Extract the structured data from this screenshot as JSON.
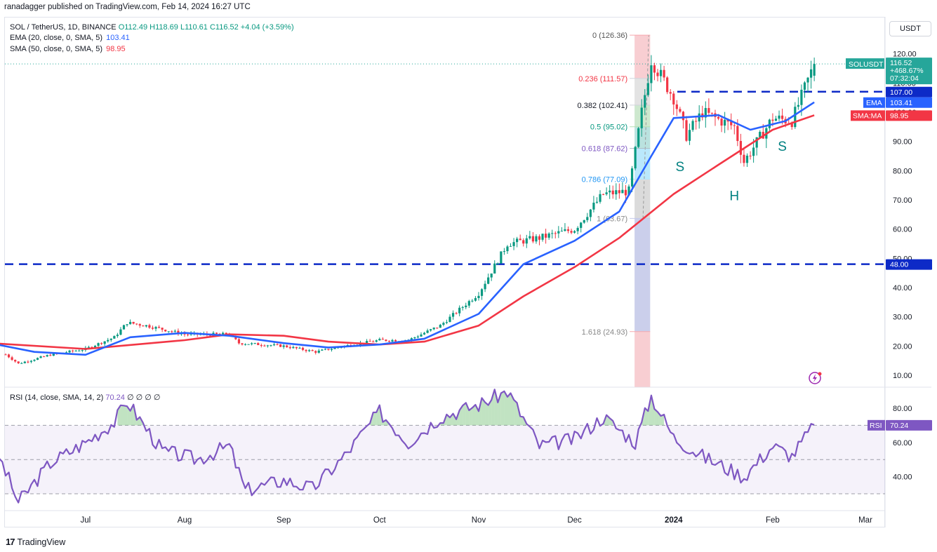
{
  "publisher_line": "ranadagger published on TradingView.com, Feb 14, 2024 16:27 UTC",
  "legend": {
    "symbol": "SOL / TetherUS, 1D, BINANCE",
    "ohlc": "O112.49 H118.69 L110.61 C116.52 +4.04 (+3.59%)",
    "ema_label": "EMA (20, close, 0, SMA, 5)",
    "ema_value": "103.41",
    "sma_label": "SMA (50, close, 0, SMA, 5)",
    "sma_value": "98.95",
    "rsi_label": "RSI (14, close, SMA, 14, 2)",
    "rsi_value": "70.24",
    "rsi_extra": "∅ ∅ ∅ ∅"
  },
  "currency": "USDT",
  "footer": {
    "brand": "TradingView"
  },
  "colors": {
    "ema": "#2962ff",
    "sma": "#f23645",
    "up": "#089981",
    "down": "#f23645",
    "level": "#0d2ac7",
    "rsi": "#7e57c2",
    "pattern": "#008080"
  },
  "chart_data": [
    {
      "type": "candlestick",
      "price_axis_ticks": [
        "120.00",
        "110.00",
        "100.00",
        "90.00",
        "80.00",
        "70.00",
        "60.00",
        "50.00",
        "40.00",
        "30.00",
        "20.00",
        "10.00"
      ],
      "time_axis_ticks": [
        "Jul",
        "Aug",
        "Sep",
        "Oct",
        "Nov",
        "Dec",
        "2024",
        "Feb",
        "Mar"
      ],
      "last_price": {
        "label": "SOLUSDT",
        "value": "116.52",
        "change": "+468.67%",
        "countdown": "07:32:04"
      },
      "horizontal_levels": [
        {
          "value": 107.0,
          "label": "107.00"
        },
        {
          "value": 48.0,
          "label": "48.00"
        }
      ],
      "ma_badges": [
        {
          "label": "EMA",
          "value": "103.41"
        },
        {
          "label": "SMA:MA",
          "value": "98.95"
        }
      ],
      "fibonacci": [
        {
          "label": "0 (126.36)",
          "value": 126.36
        },
        {
          "label": "0.236 (111.57)",
          "value": 111.57
        },
        {
          "label": "0.382 (102.41)",
          "value": 102.41
        },
        {
          "label": "0.5 (95.02)",
          "value": 95.02
        },
        {
          "label": "0.618 (87.62)",
          "value": 87.62
        },
        {
          "label": "0.786 (77.09)",
          "value": 77.09
        },
        {
          "label": "1 (63.67)",
          "value": 63.67
        },
        {
          "label": "1.618 (24.93)",
          "value": 24.93
        }
      ],
      "pattern_labels": [
        "S",
        "H",
        "S"
      ],
      "close_path": [
        [
          "Jun 01",
          21
        ],
        [
          "Jun 10",
          14
        ],
        [
          "Jun 20",
          17
        ],
        [
          "Jul 01",
          19
        ],
        [
          "Jul 10",
          23
        ],
        [
          "Jul 14",
          28
        ],
        [
          "Jul 20",
          27
        ],
        [
          "Aug 01",
          24
        ],
        [
          "Aug 15",
          24
        ],
        [
          "Aug 18",
          21
        ],
        [
          "Sep 01",
          20
        ],
        [
          "Sep 11",
          18
        ],
        [
          "Sep 20",
          20
        ],
        [
          "Oct 01",
          22
        ],
        [
          "Oct 10",
          22
        ],
        [
          "Oct 20",
          27
        ],
        [
          "Nov 01",
          38
        ],
        [
          "Nov 10",
          55
        ],
        [
          "Nov 20",
          57
        ],
        [
          "Dec 01",
          60
        ],
        [
          "Dec 10",
          72
        ],
        [
          "Dec 18",
          73
        ],
        [
          "Dec 22",
          100
        ],
        [
          "Dec 25",
          118
        ],
        [
          "Jan 01",
          105
        ],
        [
          "Jan 05",
          92
        ],
        [
          "Jan 10",
          100
        ],
        [
          "Jan 20",
          95
        ],
        [
          "Jan 23",
          83
        ],
        [
          "Feb 01",
          98
        ],
        [
          "Feb 07",
          97
        ],
        [
          "Feb 14",
          116.52
        ]
      ],
      "ema20": [
        [
          "Jun 01",
          21
        ],
        [
          "Jun 15",
          18
        ],
        [
          "Jul 01",
          17
        ],
        [
          "Jul 15",
          23
        ],
        [
          "Aug 01",
          24.5
        ],
        [
          "Aug 15",
          23.5
        ],
        [
          "Sep 01",
          21
        ],
        [
          "Sep 15",
          19.5
        ],
        [
          "Oct 01",
          20.5
        ],
        [
          "Oct 15",
          22.5
        ],
        [
          "Nov 01",
          31
        ],
        [
          "Nov 15",
          48
        ],
        [
          "Dec 01",
          56
        ],
        [
          "Dec 15",
          66
        ],
        [
          "Dec 25",
          85
        ],
        [
          "Jan 01",
          98
        ],
        [
          "Jan 15",
          99
        ],
        [
          "Jan 25",
          94
        ],
        [
          "Feb 05",
          97
        ],
        [
          "Feb 14",
          103.41
        ]
      ],
      "sma50": [
        [
          "Jun 01",
          21
        ],
        [
          "Jul 01",
          19
        ],
        [
          "Aug 01",
          22
        ],
        [
          "Aug 15",
          24
        ],
        [
          "Sep 01",
          23.5
        ],
        [
          "Sep 15",
          21.5
        ],
        [
          "Oct 01",
          20.5
        ],
        [
          "Oct 15",
          21.5
        ],
        [
          "Nov 01",
          27
        ],
        [
          "Nov 15",
          37
        ],
        [
          "Dec 01",
          47
        ],
        [
          "Dec 15",
          57
        ],
        [
          "Jan 01",
          72
        ],
        [
          "Jan 15",
          82
        ],
        [
          "Feb 01",
          94
        ],
        [
          "Feb 14",
          98.95
        ]
      ]
    },
    {
      "type": "line",
      "title": "RSI (14, close, SMA, 14, 2)",
      "axis_ticks": [
        "80.00",
        "60.00",
        "40.00"
      ],
      "bands": [
        70,
        50,
        30
      ],
      "last": {
        "label": "RSI",
        "value": "70.24"
      },
      "series": [
        [
          "Jun 01",
          65
        ],
        [
          "Jun 10",
          25
        ],
        [
          "Jun 20",
          48
        ],
        [
          "Jul 01",
          60
        ],
        [
          "Jul 10",
          72
        ],
        [
          "Jul 14",
          84
        ],
        [
          "Jul 25",
          55
        ],
        [
          "Aug 05",
          50
        ],
        [
          "Aug 15",
          58
        ],
        [
          "Aug 20",
          32
        ],
        [
          "Sep 01",
          38
        ],
        [
          "Sep 10",
          33
        ],
        [
          "Sep 20",
          52
        ],
        [
          "Oct 01",
          78
        ],
        [
          "Oct 10",
          60
        ],
        [
          "Oct 20",
          75
        ],
        [
          "Nov 01",
          82
        ],
        [
          "Nov 10",
          90
        ],
        [
          "Nov 20",
          58
        ],
        [
          "Dec 01",
          62
        ],
        [
          "Dec 10",
          75
        ],
        [
          "Dec 20",
          60
        ],
        [
          "Dec 25",
          87
        ],
        [
          "Jan 01",
          63
        ],
        [
          "Jan 10",
          52
        ],
        [
          "Jan 23",
          40
        ],
        [
          "Feb 01",
          58
        ],
        [
          "Feb 07",
          52
        ],
        [
          "Feb 14",
          70.24
        ]
      ]
    }
  ]
}
